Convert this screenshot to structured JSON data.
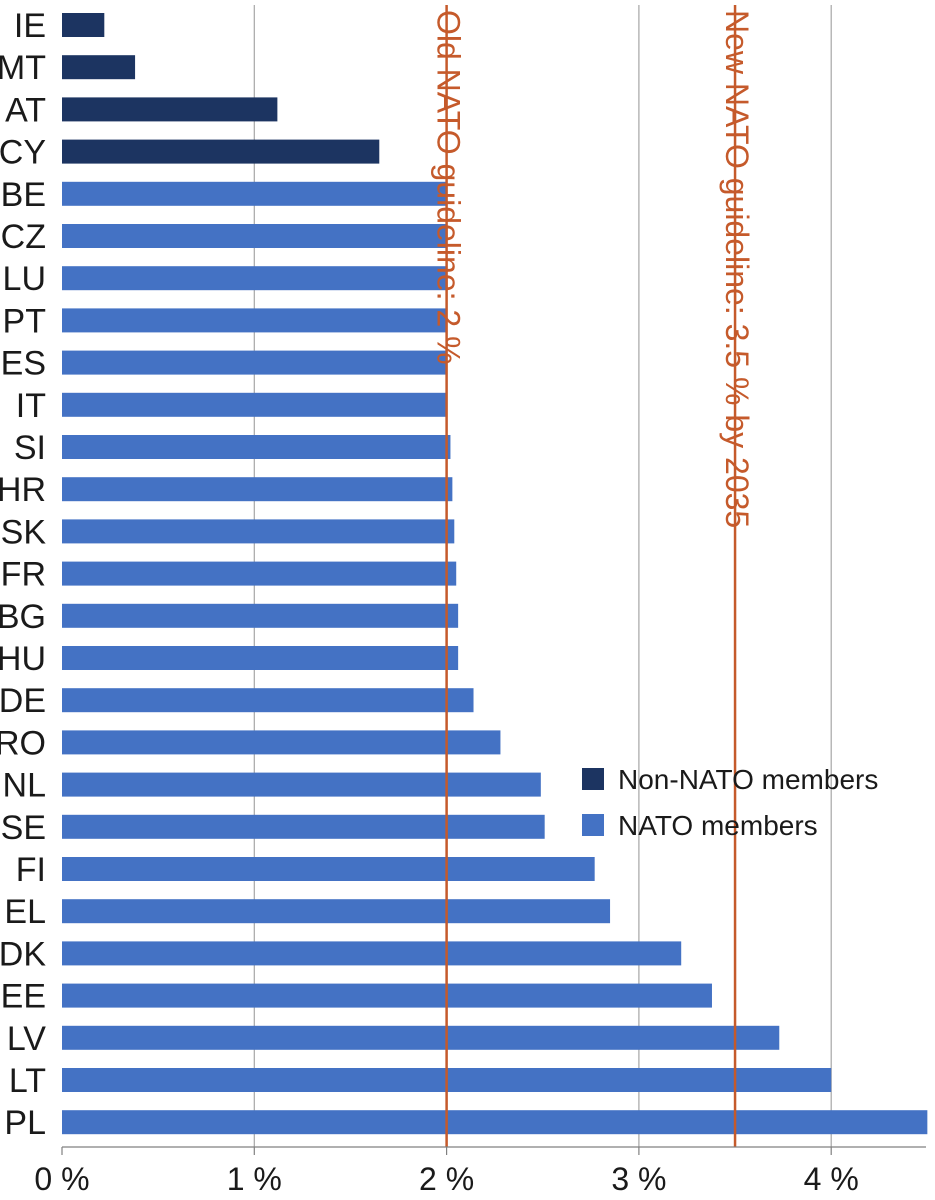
{
  "chart_data": {
    "type": "bar",
    "orientation": "horizontal",
    "title": "",
    "xlabel": "",
    "ylabel": "",
    "xlim": [
      0,
      4.5
    ],
    "x_ticks": [
      0,
      1,
      2,
      3,
      4
    ],
    "x_tick_labels": [
      "0 %",
      "1 %",
      "2 %",
      "3 %",
      "4 %"
    ],
    "grid": "vertical",
    "legend_position": "right",
    "categories": [
      "IE",
      "MT",
      "AT",
      "CY",
      "BE",
      "CZ",
      "LU",
      "PT",
      "ES",
      "IT",
      "SI",
      "HR",
      "SK",
      "FR",
      "BG",
      "HU",
      "DE",
      "RO",
      "NL",
      "SE",
      "FI",
      "EL",
      "DK",
      "EE",
      "LV",
      "LT",
      "PL"
    ],
    "values": [
      0.22,
      0.38,
      1.12,
      1.65,
      2.0,
      2.0,
      2.0,
      2.0,
      2.0,
      2.0,
      2.02,
      2.03,
      2.04,
      2.05,
      2.06,
      2.06,
      2.14,
      2.28,
      2.49,
      2.51,
      2.77,
      2.85,
      3.22,
      3.38,
      3.73,
      4.0,
      4.5
    ],
    "groups": [
      "non_nato",
      "non_nato",
      "non_nato",
      "non_nato",
      "nato",
      "nato",
      "nato",
      "nato",
      "nato",
      "nato",
      "nato",
      "nato",
      "nato",
      "nato",
      "nato",
      "nato",
      "nato",
      "nato",
      "nato",
      "nato",
      "nato",
      "nato",
      "nato",
      "nato",
      "nato",
      "nato",
      "nato"
    ],
    "series": [
      {
        "key": "non_nato",
        "name": "Non-NATO members",
        "color": "#1c3461"
      },
      {
        "key": "nato",
        "name": "NATO members",
        "color": "#4472c4"
      }
    ],
    "reference_lines": [
      {
        "value": 2.0,
        "label": "Old NATO guideline: 2 %",
        "color": "#c55a2b"
      },
      {
        "value": 3.5,
        "label": "New NATO guideline: 3.5 % by 2035",
        "color": "#c55a2b"
      }
    ],
    "colors": {
      "grid": "#a6a6a6",
      "axis": "#808080",
      "text": "#1a1a1a"
    }
  }
}
